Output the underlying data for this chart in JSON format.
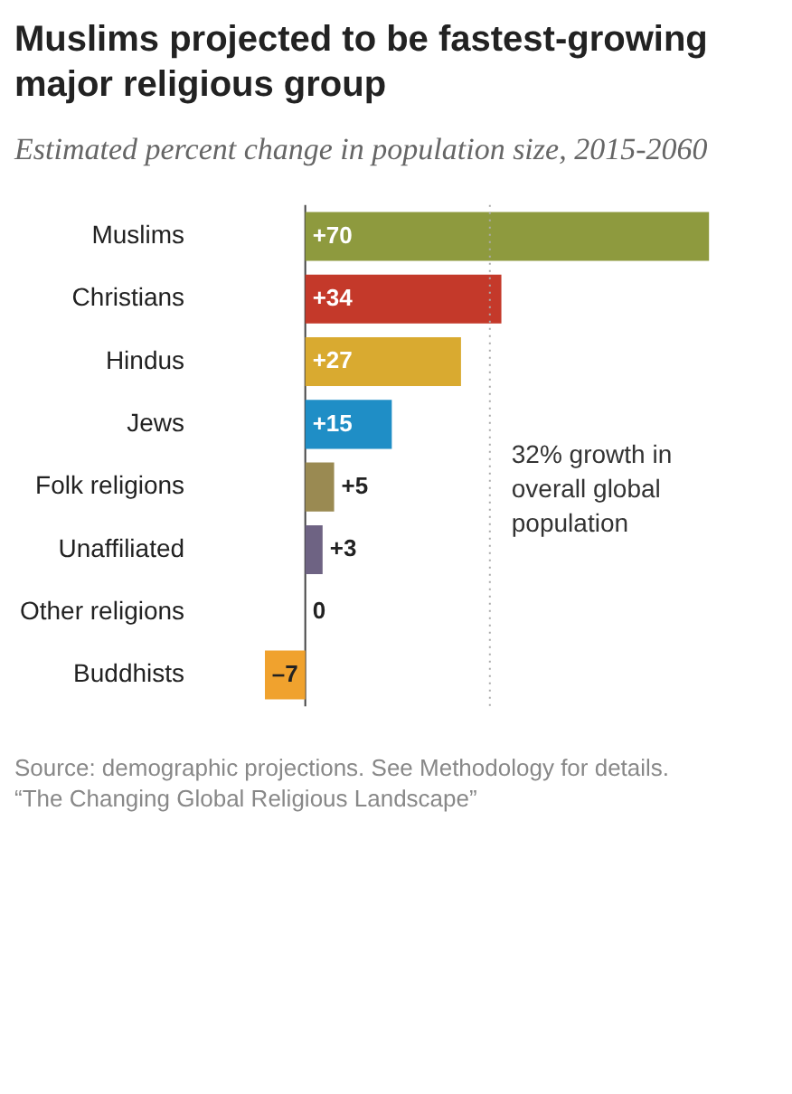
{
  "chart_data": {
    "type": "bar",
    "orientation": "horizontal",
    "title": "Muslims projected to be fastest-growing major religious group",
    "subtitle": "Estimated percent change in population size, 2015-2060",
    "categories": [
      "Muslims",
      "Christians",
      "Hindus",
      "Jews",
      "Folk religions",
      "Unaffiliated",
      "Other religions",
      "Buddhists"
    ],
    "values": [
      70,
      34,
      27,
      15,
      5,
      3,
      0,
      -7
    ],
    "colors": [
      "#8e9a3e",
      "#c4392a",
      "#d9aa30",
      "#1f8ec6",
      "#9a8a52",
      "#6e6383",
      "#888888",
      "#f0a22e"
    ],
    "value_labels": [
      "+70",
      "+34",
      "+27",
      "+15",
      "+5",
      "+3",
      "0",
      "–7"
    ],
    "tick_labels": "y",
    "legend": false,
    "ref_lines": [
      {
        "axis": "x",
        "value": 32,
        "label": "32% growth in overall global population",
        "line_style": "dotted",
        "color": "#aaaaaa"
      }
    ],
    "annotations": [
      "Source: demographic projections. See Methodology for details.",
      "“The Changing Global Religious Landscape”"
    ]
  }
}
